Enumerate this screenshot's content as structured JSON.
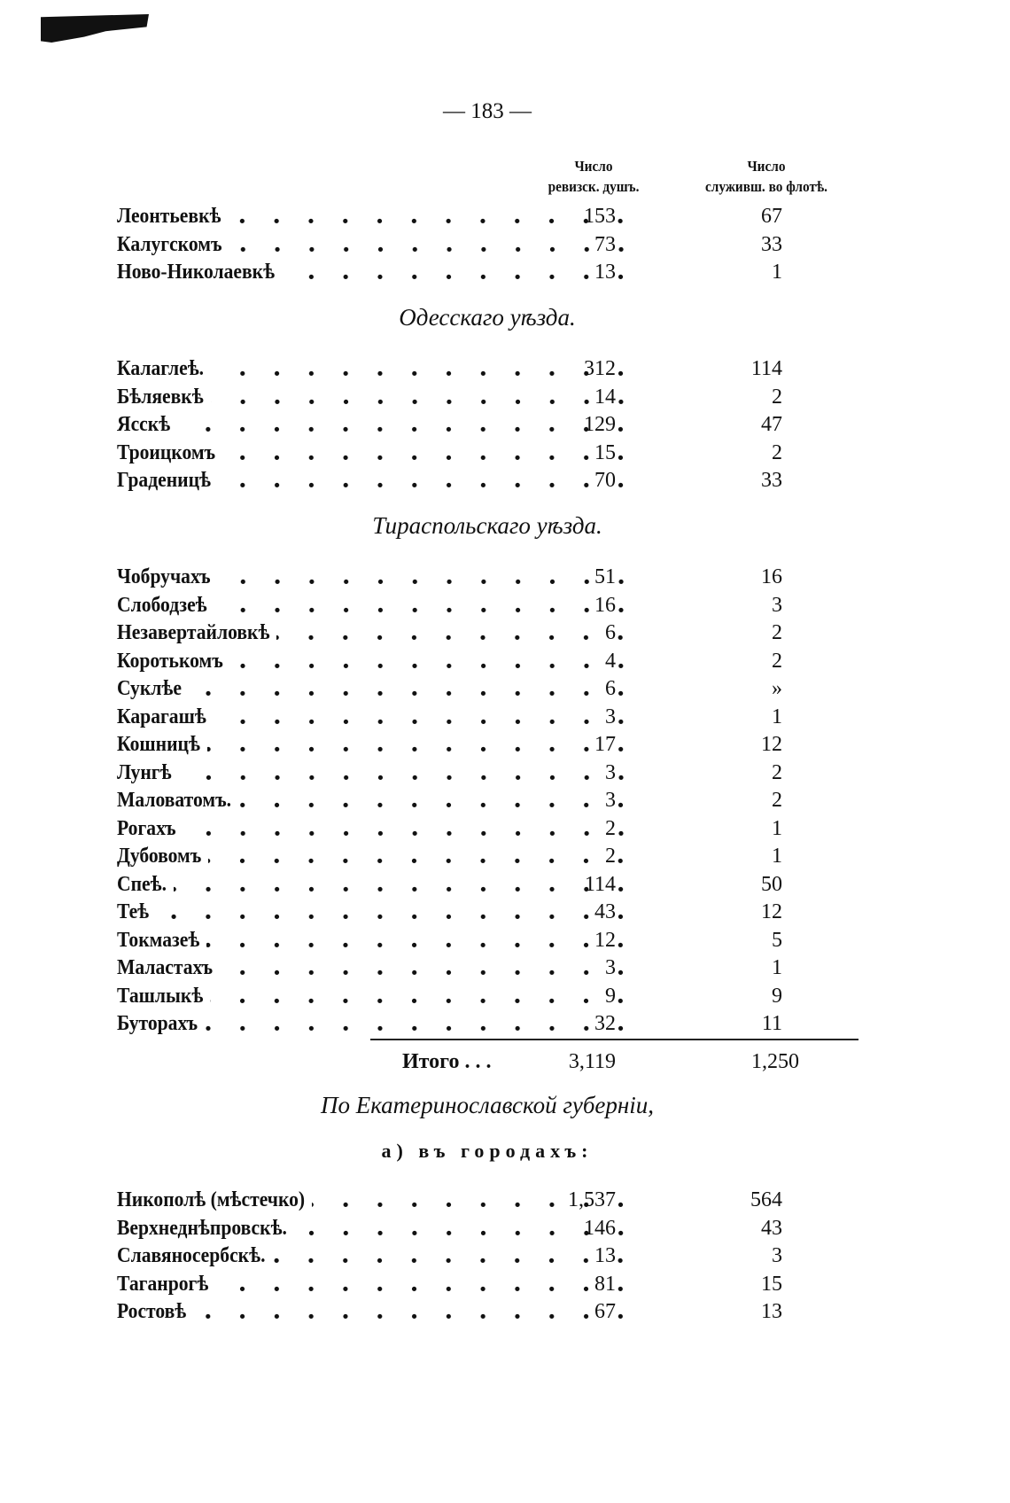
{
  "page_number": "— 183 —",
  "columns": {
    "col1_line1": "Число",
    "col1_line2": "ревизск. душъ.",
    "col2_line1": "Число",
    "col2_line2": "служивш. во флотѣ."
  },
  "groups": [
    {
      "heading": "",
      "rows": [
        {
          "name": "Леонтьевкѣ",
          "souls": "153",
          "navy": "67"
        },
        {
          "name": "Калугскомъ",
          "souls": "73",
          "navy": "33"
        },
        {
          "name": "Ново-Николаевкѣ",
          "souls": "13",
          "navy": "1"
        }
      ]
    },
    {
      "heading": "Одесскаго уѣзда.",
      "rows": [
        {
          "name": "Калаглеѣ.",
          "souls": "312",
          "navy": "114"
        },
        {
          "name": "Бѣляевкѣ",
          "souls": "14",
          "navy": "2"
        },
        {
          "name": "Ясскѣ",
          "souls": "129",
          "navy": "47"
        },
        {
          "name": "Троицкомъ",
          "souls": "15",
          "navy": "2"
        },
        {
          "name": "Граденицѣ",
          "souls": "70",
          "navy": "33"
        }
      ]
    },
    {
      "heading": "Тираспольскаго уѣзда.",
      "rows": [
        {
          "name": "Чобручахъ",
          "souls": "51",
          "navy": "16"
        },
        {
          "name": "Слободзеѣ",
          "souls": "16",
          "navy": "3"
        },
        {
          "name": "Незавертайловкѣ",
          "souls": "6",
          "navy": "2"
        },
        {
          "name": "Коротькомъ",
          "souls": "4",
          "navy": "2"
        },
        {
          "name": "Суклѣе",
          "souls": "6",
          "navy": "»"
        },
        {
          "name": "Карагашѣ",
          "souls": "3",
          "navy": "1"
        },
        {
          "name": "Кошницѣ",
          "souls": "17",
          "navy": "12"
        },
        {
          "name": "Лунгѣ",
          "souls": "3",
          "navy": "2"
        },
        {
          "name": "Маловатомъ.",
          "souls": "3",
          "navy": "2"
        },
        {
          "name": "Рогахъ",
          "souls": "2",
          "navy": "1"
        },
        {
          "name": "Дубовомъ",
          "souls": "2",
          "navy": "1"
        },
        {
          "name": "Спеѣ.",
          "souls": "114",
          "navy": "50"
        },
        {
          "name": "Теѣ",
          "souls": "43",
          "navy": "12"
        },
        {
          "name": "Токмазеѣ",
          "souls": "12",
          "navy": "5"
        },
        {
          "name": "Маластахъ",
          "souls": "3",
          "navy": "1"
        },
        {
          "name": "Ташлыкѣ",
          "souls": "9",
          "navy": "9"
        },
        {
          "name": "Буторахъ",
          "souls": "32",
          "navy": "11"
        }
      ]
    }
  ],
  "total": {
    "label": "Итого . . .",
    "souls": "3,119",
    "navy": "1,250"
  },
  "province_heading": "По Екатеринославской губерніи,",
  "subheading": "а) въ городахъ:",
  "cities": [
    {
      "name": "Никополѣ (мѣстечко)",
      "souls": "1,537",
      "navy": "564"
    },
    {
      "name": "Верхнеднѣпровскѣ.",
      "souls": "146",
      "navy": "43"
    },
    {
      "name": "Славяносербскѣ.",
      "souls": "13",
      "navy": "3"
    },
    {
      "name": "Таганрогѣ",
      "souls": "81",
      "navy": "15"
    },
    {
      "name": "Ростовѣ",
      "souls": "67",
      "navy": "13"
    }
  ]
}
